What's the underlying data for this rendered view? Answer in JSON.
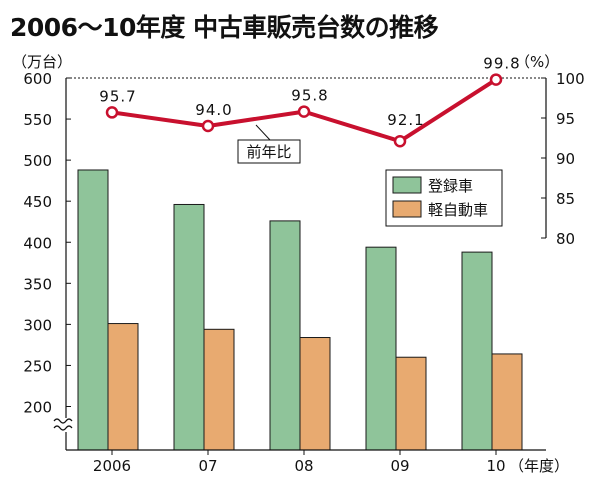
{
  "title": "2006～10年度 中古車販売台数の推移",
  "chart_data": {
    "type": "bar",
    "title": "2006～10年度 中古車販売台数の推移",
    "categories": [
      "2006",
      "07",
      "08",
      "09",
      "10"
    ],
    "x_unit": "（年度）",
    "series": [
      {
        "name": "登録車",
        "type": "bar",
        "color": "#8fc49a",
        "values": [
          488,
          446,
          426,
          394,
          388
        ]
      },
      {
        "name": "軽自動車",
        "type": "bar",
        "color": "#e8aa70",
        "values": [
          301,
          294,
          284,
          260,
          264
        ]
      },
      {
        "name": "前年比",
        "type": "line",
        "axis": "right",
        "color": "#c8102e",
        "values": [
          95.7,
          94.0,
          95.8,
          92.1,
          99.8
        ],
        "labels": [
          "95.7",
          "94.0",
          "95.8",
          "92.1",
          "99.8"
        ]
      }
    ],
    "y_left": {
      "unit": "（万台）",
      "ylim": [
        200,
        600
      ],
      "ticks": [
        200,
        250,
        300,
        350,
        400,
        450,
        500,
        550,
        600
      ],
      "axis_break_below": 200
    },
    "y_right": {
      "unit": "（%）",
      "ylim": [
        80,
        100
      ],
      "ticks": [
        80,
        85,
        90,
        95,
        100
      ]
    },
    "line_label": "前年比",
    "legend": {
      "position": "right",
      "items": [
        "登録車",
        "軽自動車"
      ]
    },
    "grid": false
  }
}
